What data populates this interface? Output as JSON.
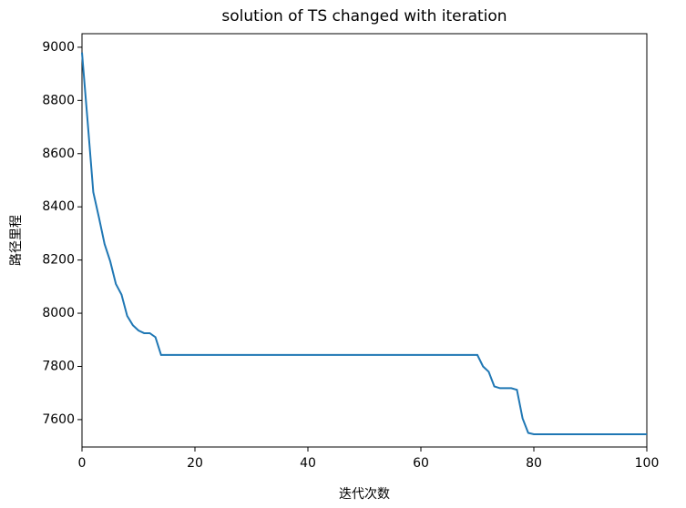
{
  "chart_data": {
    "type": "line",
    "title": "solution of TS changed with iteration",
    "x_label": "迭代次数",
    "y_label": "路径里程",
    "x": [
      0,
      1,
      2,
      3,
      4,
      5,
      6,
      7,
      8,
      9,
      10,
      11,
      12,
      13,
      14,
      15,
      16,
      17,
      18,
      19,
      20,
      21,
      22,
      23,
      24,
      25,
      26,
      27,
      28,
      29,
      30,
      31,
      32,
      33,
      34,
      35,
      36,
      37,
      38,
      39,
      40,
      41,
      42,
      43,
      44,
      45,
      46,
      47,
      48,
      49,
      50,
      51,
      52,
      53,
      54,
      55,
      56,
      57,
      58,
      59,
      60,
      61,
      62,
      63,
      64,
      65,
      66,
      67,
      68,
      69,
      70,
      71,
      72,
      73,
      74,
      75,
      76,
      77,
      78,
      79,
      80,
      81,
      82,
      83,
      84,
      85,
      86,
      87,
      88,
      89,
      90,
      91,
      92,
      93,
      94,
      95,
      96,
      97,
      98,
      99,
      100
    ],
    "series": [
      {
        "name": "solution",
        "color": "#1f77b4",
        "values": [
          8980,
          8720,
          8455,
          8360,
          8260,
          8195,
          8110,
          8070,
          7990,
          7955,
          7935,
          7925,
          7925,
          7910,
          7843,
          7843,
          7843,
          7843,
          7843,
          7843,
          7843,
          7843,
          7843,
          7843,
          7843,
          7843,
          7843,
          7843,
          7843,
          7843,
          7843,
          7843,
          7843,
          7843,
          7843,
          7843,
          7843,
          7843,
          7843,
          7843,
          7843,
          7843,
          7843,
          7843,
          7843,
          7843,
          7843,
          7843,
          7843,
          7843,
          7843,
          7843,
          7843,
          7843,
          7843,
          7843,
          7843,
          7843,
          7843,
          7843,
          7843,
          7843,
          7843,
          7843,
          7843,
          7843,
          7843,
          7843,
          7843,
          7843,
          7843,
          7800,
          7780,
          7725,
          7718,
          7718,
          7718,
          7712,
          7605,
          7550,
          7545,
          7545,
          7545,
          7545,
          7545,
          7545,
          7545,
          7545,
          7545,
          7545,
          7545,
          7545,
          7545,
          7545,
          7545,
          7545,
          7545,
          7545,
          7545,
          7545,
          7545
        ]
      }
    ],
    "xlim": [
      0,
      100
    ],
    "xticks": [
      0,
      20,
      40,
      60,
      80,
      100
    ],
    "ylim": [
      7497,
      9051
    ],
    "yticks": [
      7600,
      7800,
      8000,
      8200,
      8400,
      8600,
      8800,
      9000
    ],
    "grid": false
  }
}
